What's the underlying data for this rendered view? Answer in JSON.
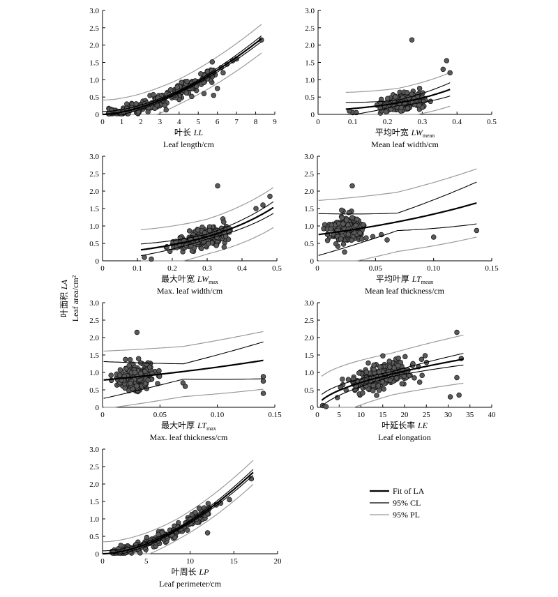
{
  "figure": {
    "y_label_cn": "叶面积 LA",
    "y_label_en": "Leaf area/cm²",
    "legend": [
      {
        "label": "Fit of LA",
        "color": "#000000",
        "width": 2.2
      },
      {
        "label": "95% CL",
        "color": "#000000",
        "width": 1.2
      },
      {
        "label": "95% PL",
        "color": "#9a9a9a",
        "width": 1.2
      }
    ]
  },
  "chart_data": [
    {
      "id": "LL",
      "type": "scatter",
      "xlabel_cn": "叶长 LL",
      "xlabel_en": "Leaf length/cm",
      "xlim": [
        0,
        9
      ],
      "xticks": [
        "0",
        "1",
        "2",
        "3",
        "4",
        "5",
        "6",
        "7",
        "8",
        "9"
      ],
      "ylim": [
        0,
        3
      ],
      "yticks": [
        "0",
        "0.5",
        "1.0",
        "1.5",
        "2.0",
        "2.5",
        "3.0"
      ],
      "fit": {
        "a": 0.0665,
        "b": 1.65
      },
      "cloud": {
        "n": 240,
        "xmin": 0.3,
        "xmax": 5.9,
        "spread": 0.28,
        "xmode": "uniform"
      },
      "points": [
        [
          6.2,
          1.35
        ],
        [
          6.5,
          1.45
        ],
        [
          6.8,
          1.55
        ],
        [
          7.0,
          1.6
        ],
        [
          6.0,
          0.75
        ],
        [
          5.8,
          0.55
        ],
        [
          5.3,
          0.6
        ],
        [
          6.3,
          1.2
        ],
        [
          8.3,
          2.15
        ]
      ],
      "fit_range": [
        0,
        8.3
      ],
      "cl_w": 0.035,
      "pl_w": 0.36
    },
    {
      "id": "LWmean",
      "type": "scatter",
      "xlabel_cn": "平均叶宽 LW",
      "xlabel_sub": "mean",
      "xlabel_en": "Mean leaf width/cm",
      "xlim": [
        0,
        0.5
      ],
      "xticks": [
        "0",
        "0.1",
        "0.2",
        "0.3",
        "0.4",
        "0.5"
      ],
      "ylim": [
        0,
        3
      ],
      "yticks": [
        "0",
        "0.5",
        "1.0",
        "1.5",
        "2.0",
        "2.5",
        "3.0"
      ],
      "fit": {
        "a": 0.1,
        "b": 5.2,
        "c": 0.03,
        "x0": 0.08
      },
      "cloud": {
        "n": 230,
        "xmin": 0.09,
        "xmax": 0.34,
        "spread": 0.3,
        "xmode": "center",
        "center": 0.24
      },
      "points": [
        [
          0.1,
          0.05
        ],
        [
          0.09,
          0.1
        ],
        [
          0.11,
          0.05
        ],
        [
          0.36,
          1.3
        ],
        [
          0.37,
          1.55
        ],
        [
          0.38,
          1.2
        ],
        [
          0.27,
          2.15
        ],
        [
          0.3,
          0.5
        ]
      ],
      "fit_range": [
        0.08,
        0.38
      ],
      "cl_w": 0.08,
      "pl_w": 0.42
    },
    {
      "id": "LWmax",
      "type": "scatter",
      "xlabel_cn": "最大叶宽 LW",
      "xlabel_sub": "max",
      "xlabel_en": "Max. leaf width/cm",
      "xlim": [
        0,
        0.5
      ],
      "xticks": [
        "0",
        "0.1",
        "0.2",
        "0.3",
        "0.4",
        "0.5"
      ],
      "ylim": [
        0,
        3
      ],
      "yticks": [
        "0",
        "0.5",
        "1.0",
        "1.5",
        "2.0",
        "2.5",
        "3.0"
      ],
      "fit": {
        "a": 0.2,
        "b": 4.15,
        "c": 0.0,
        "x0": 0.0
      },
      "cloud": {
        "n": 230,
        "xmin": 0.13,
        "xmax": 0.43,
        "spread": 0.3,
        "xmode": "center",
        "center": 0.29
      },
      "points": [
        [
          0.33,
          2.15
        ],
        [
          0.48,
          1.85
        ],
        [
          0.46,
          1.6
        ],
        [
          0.44,
          1.5
        ],
        [
          0.14,
          0.05
        ],
        [
          0.12,
          0.1
        ]
      ],
      "fit_range": [
        0.11,
        0.49
      ],
      "cl_w": 0.07,
      "pl_w": 0.5
    },
    {
      "id": "LTmean",
      "type": "scatter",
      "xlabel_cn": "平均叶厚 LT",
      "xlabel_sub": "mean",
      "xlabel_en": "Mean leaf thickness/cm",
      "xlim": [
        0,
        0.15
      ],
      "xticks": [
        "0",
        "0.05",
        "0.10",
        "0.15"
      ],
      "ylim": [
        0,
        3
      ],
      "yticks": [
        "0",
        "0.5",
        "1.0",
        "1.5",
        "2.0",
        "2.5",
        "3.0"
      ],
      "fit": {
        "a": 0.75,
        "b": 5.8,
        "c": 0.0,
        "x0": 0.0
      },
      "cloud": {
        "n": 220,
        "xmin": 0.005,
        "xmax": 0.06,
        "spread": 0.42,
        "xmode": "center",
        "center": 0.025
      },
      "points": [
        [
          0.1,
          0.68
        ],
        [
          0.137,
          0.87
        ],
        [
          0.06,
          0.6
        ],
        [
          0.055,
          0.75
        ],
        [
          0.03,
          2.15
        ]
      ],
      "fit_range": [
        0.001,
        0.137
      ],
      "cl_w": 0.25,
      "pl_w": 0.85
    },
    {
      "id": "LTmax",
      "type": "scatter",
      "xlabel_cn": "最大叶厚 LT",
      "xlabel_sub": "max",
      "xlabel_en": "Max. leaf thickness/cm",
      "xlim": [
        0,
        0.15
      ],
      "xticks": [
        "0",
        "0.05",
        "0.10",
        "0.15"
      ],
      "ylim": [
        0,
        3
      ],
      "yticks": [
        "0",
        "0.5",
        "1.0",
        "1.5",
        "2.0",
        "2.5",
        "3.0"
      ],
      "fit": {
        "a": 0.78,
        "b": 3.9,
        "c": 0.0,
        "x0": 0.0
      },
      "cloud": {
        "n": 220,
        "xmin": 0.005,
        "xmax": 0.07,
        "spread": 0.42,
        "xmode": "center",
        "center": 0.03
      },
      "points": [
        [
          0.14,
          0.88
        ],
        [
          0.14,
          0.75
        ],
        [
          0.14,
          0.4
        ],
        [
          0.07,
          0.7
        ],
        [
          0.072,
          0.6
        ],
        [
          0.03,
          2.15
        ]
      ],
      "fit_range": [
        0.001,
        0.14
      ],
      "cl_w": 0.22,
      "pl_w": 0.72
    },
    {
      "id": "LE",
      "type": "scatter",
      "xlabel_cn": "叶延长率 LE",
      "xlabel_en": "Leaf elongation",
      "xlim": [
        0,
        40
      ],
      "xticks": [
        "0",
        "5",
        "10",
        "15",
        "20",
        "25",
        "30",
        "35",
        "40"
      ],
      "ylim": [
        0,
        3
      ],
      "yticks": [
        "0",
        "0.5",
        "1.0",
        "1.5",
        "2.0",
        "2.5",
        "3.0"
      ],
      "fit": {
        "mode": "pow",
        "a": 0.2,
        "b": 0.55
      },
      "cloud": {
        "n": 240,
        "xmin": 1.0,
        "xmax": 31.0,
        "spread": 0.38,
        "xmode": "center",
        "center": 15
      },
      "points": [
        [
          32,
          2.15
        ],
        [
          33,
          1.4
        ],
        [
          32,
          0.85
        ],
        [
          32.5,
          0.35
        ],
        [
          30.5,
          0.3
        ],
        [
          1.2,
          0.05
        ],
        [
          2,
          0.02
        ]
      ],
      "fit_range": [
        1.0,
        33.5
      ],
      "cl_w": 0.07,
      "pl_w": 0.6
    },
    {
      "id": "LP",
      "type": "scatter",
      "xlabel_cn": "叶周长 LP",
      "xlabel_en": "Leaf perimeter/cm",
      "xlim": [
        0,
        20
      ],
      "xticks": [
        "0",
        "5",
        "10",
        "15",
        "20"
      ],
      "ylim": [
        0,
        3
      ],
      "yticks": [
        "0",
        "0.5",
        "1.0",
        "1.5",
        "2.0",
        "2.5",
        "3.0"
      ],
      "fit": {
        "a": 0.0175,
        "b": 1.72
      },
      "cloud": {
        "n": 220,
        "xmin": 1.0,
        "xmax": 12.2,
        "spread": 0.22,
        "xmode": "uniform"
      },
      "points": [
        [
          13,
          1.4
        ],
        [
          13.5,
          1.45
        ],
        [
          14.5,
          1.55
        ],
        [
          12,
          0.6
        ],
        [
          17,
          2.15
        ]
      ],
      "fit_range": [
        0,
        17.2
      ],
      "cl_w": 0.035,
      "pl_w": 0.3
    }
  ]
}
